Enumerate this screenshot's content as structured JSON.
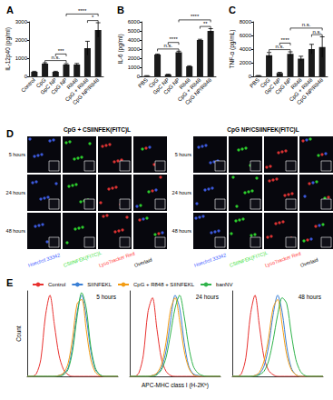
{
  "chart_data": [
    {
      "type": "bar",
      "title": "A",
      "categories": [
        "Control",
        "CpG",
        "GpC NP",
        "CpG NP",
        "R848",
        "CpG + R848",
        "CpG NP/R848"
      ],
      "values": [
        250,
        700,
        250,
        650,
        650,
        1550,
        2550
      ],
      "errors": [
        30,
        50,
        30,
        50,
        60,
        380,
        400
      ],
      "color": "#1a1a1a",
      "ylabel": "IL-12p40 (pg/ml)",
      "ylim": [
        0,
        3000
      ],
      "yticks": [
        0,
        1000,
        2000,
        3000
      ],
      "grid": false,
      "significance": [
        {
          "from": "CpG",
          "to": "CpG NP",
          "label": "n.s."
        },
        {
          "from": "GpC NP",
          "to": "CpG NP",
          "label": "***"
        },
        {
          "from": "CpG + R848",
          "to": "CpG NP/R848",
          "label": "*"
        },
        {
          "from": "CpG NP",
          "to": "CpG NP/R848",
          "label": "****"
        }
      ]
    },
    {
      "type": "bar",
      "title": "B",
      "categories": [
        "PBS",
        "CpG",
        "GpC NP",
        "CpG NP",
        "R848",
        "CpG + R848",
        "CpG NP/R848"
      ],
      "values": [
        60,
        2400,
        200,
        2650,
        1100,
        4000,
        5000
      ],
      "errors": [
        20,
        60,
        40,
        120,
        60,
        80,
        250
      ],
      "color": "#1a1a1a",
      "ylabel": "IL-6 (pg/ml)",
      "ylim": [
        0,
        6000
      ],
      "yticks": [
        0,
        1000,
        2000,
        3000,
        4000,
        5000,
        6000
      ],
      "grid": false,
      "significance": [
        {
          "from": "CpG",
          "to": "CpG NP",
          "label": "n.s."
        },
        {
          "from": "GpC NP",
          "to": "CpG NP",
          "label": "****"
        },
        {
          "from": "CpG + R848",
          "to": "CpG NP/R848",
          "label": "**"
        },
        {
          "from": "CpG NP",
          "to": "CpG NP/R848",
          "label": "****"
        }
      ]
    },
    {
      "type": "bar",
      "title": "C",
      "categories": [
        "PBS",
        "CpG",
        "GpC NP",
        "CpG NP",
        "R848",
        "CpG + R848",
        "CpG NP/R848"
      ],
      "values": [
        100,
        3100,
        500,
        3300,
        2600,
        4000,
        4300
      ],
      "errors": [
        30,
        400,
        100,
        300,
        350,
        700,
        1500
      ],
      "color": "#1a1a1a",
      "ylabel": "TNF-α (pg/mL)",
      "ylim": [
        0,
        8000
      ],
      "yticks": [
        0,
        2000,
        4000,
        6000,
        8000
      ],
      "grid": false,
      "significance": [
        {
          "from": "CpG",
          "to": "CpG NP",
          "label": "n.s."
        },
        {
          "from": "GpC NP",
          "to": "CpG NP",
          "label": "****"
        },
        {
          "from": "CpG + R848",
          "to": "CpG NP/R848",
          "label": "n.s."
        },
        {
          "from": "CpG NP",
          "to": "CpG NP/R848",
          "label": "n.s."
        }
      ]
    },
    {
      "type": "line",
      "title": "E",
      "annotation": "5 hours",
      "ylabel": "Count",
      "legend": "top",
      "tick_labels": false,
      "grid": false,
      "xlim": [
        0,
        100
      ],
      "ylim": [
        0,
        100
      ],
      "x": [
        0,
        5,
        10,
        15,
        20,
        25,
        30,
        35,
        40,
        45,
        50,
        55,
        60,
        65,
        70,
        75,
        80,
        85,
        90,
        95,
        100
      ],
      "series": [
        {
          "name": "Control",
          "color": "#e8312f",
          "values": [
            0,
            0,
            3,
            20,
            70,
            95,
            60,
            25,
            8,
            2,
            0,
            0,
            0,
            0,
            0,
            0,
            0,
            0,
            0,
            0,
            0
          ]
        },
        {
          "name": "SIINFEKL",
          "color": "#3a7fd5",
          "values": [
            0,
            0,
            0,
            0,
            0,
            0,
            0,
            1,
            3,
            10,
            35,
            75,
            95,
            70,
            30,
            8,
            2,
            0,
            0,
            0,
            0
          ]
        },
        {
          "name": "CpG + R848 + SIINFEKL",
          "color": "#f39c12",
          "values": [
            0,
            0,
            0,
            0,
            0,
            0,
            0,
            1,
            4,
            15,
            45,
            85,
            90,
            55,
            20,
            5,
            1,
            0,
            0,
            0,
            0
          ]
        },
        {
          "name": "banNV",
          "color": "#2fb34a",
          "values": [
            0,
            0,
            0,
            0,
            0,
            0,
            0,
            0,
            2,
            8,
            30,
            70,
            98,
            80,
            35,
            10,
            2,
            0,
            0,
            0,
            0
          ]
        }
      ]
    },
    {
      "type": "line",
      "annotation": "24 hours",
      "xlabel": "APC-MHC class I (H-2Kᵇ)",
      "tick_labels": false,
      "grid": false,
      "xlim": [
        0,
        100
      ],
      "ylim": [
        0,
        100
      ],
      "x": [
        0,
        5,
        10,
        15,
        20,
        25,
        30,
        35,
        40,
        45,
        50,
        55,
        60,
        65,
        70,
        75,
        80,
        85,
        90,
        95,
        100
      ],
      "series": [
        {
          "name": "Control",
          "color": "#e8312f",
          "values": [
            0,
            0,
            4,
            25,
            75,
            92,
            55,
            20,
            6,
            1,
            0,
            0,
            0,
            0,
            0,
            0,
            0,
            0,
            0,
            0,
            0
          ]
        },
        {
          "name": "SIINFEKL",
          "color": "#3a7fd5",
          "values": [
            0,
            0,
            0,
            0,
            0,
            1,
            3,
            10,
            30,
            65,
            95,
            80,
            40,
            12,
            3,
            1,
            0,
            0,
            0,
            0,
            0
          ]
        },
        {
          "name": "CpG + R848 + SIINFEKL",
          "color": "#f39c12",
          "values": [
            0,
            0,
            0,
            0,
            0,
            1,
            4,
            14,
            40,
            78,
            92,
            65,
            30,
            10,
            2,
            0,
            0,
            0,
            0,
            0,
            0
          ]
        },
        {
          "name": "banNV",
          "color": "#2fb34a",
          "values": [
            0,
            0,
            0,
            0,
            0,
            0,
            2,
            8,
            22,
            50,
            80,
            95,
            70,
            35,
            12,
            4,
            1,
            0,
            0,
            0,
            0
          ]
        }
      ]
    },
    {
      "type": "line",
      "annotation": "48 hours",
      "tick_labels": false,
      "grid": false,
      "xlim": [
        0,
        100
      ],
      "ylim": [
        0,
        100
      ],
      "x": [
        0,
        5,
        10,
        15,
        20,
        25,
        30,
        35,
        40,
        45,
        50,
        55,
        60,
        65,
        70,
        75,
        80,
        85,
        90,
        95,
        100
      ],
      "series": [
        {
          "name": "Control",
          "color": "#e8312f",
          "values": [
            0,
            0,
            3,
            22,
            72,
            95,
            58,
            22,
            7,
            2,
            0,
            0,
            0,
            0,
            0,
            0,
            0,
            0,
            0,
            0,
            0
          ]
        },
        {
          "name": "SIINFEKL",
          "color": "#3a7fd5",
          "values": [
            0,
            0,
            0,
            0,
            0,
            1,
            3,
            12,
            35,
            72,
            95,
            75,
            35,
            10,
            2,
            0,
            0,
            0,
            0,
            0,
            0
          ]
        },
        {
          "name": "CpG + R848 + SIINFEKL",
          "color": "#f39c12",
          "values": [
            0,
            0,
            0,
            0,
            0,
            1,
            5,
            18,
            45,
            80,
            90,
            60,
            25,
            8,
            2,
            0,
            0,
            0,
            0,
            0,
            0
          ]
        },
        {
          "name": "banNV",
          "color": "#2fb34a",
          "values": [
            0,
            0,
            0,
            0,
            0,
            0,
            2,
            6,
            18,
            42,
            72,
            92,
            85,
            50,
            20,
            6,
            1,
            0,
            0,
            0,
            0
          ]
        }
      ]
    }
  ],
  "image_panel": {
    "title": "D",
    "groups": [
      "CpG + CSIINFEK(FITC)L",
      "CpG NP/CSIINFEK(FITC)L"
    ],
    "rows": [
      "5 hours",
      "24 hours",
      "48 hours"
    ],
    "columns": [
      "Hoechst 33342",
      "CSIINFEK(FITC)L",
      "LysoTracker Red",
      "Overlaid"
    ]
  }
}
